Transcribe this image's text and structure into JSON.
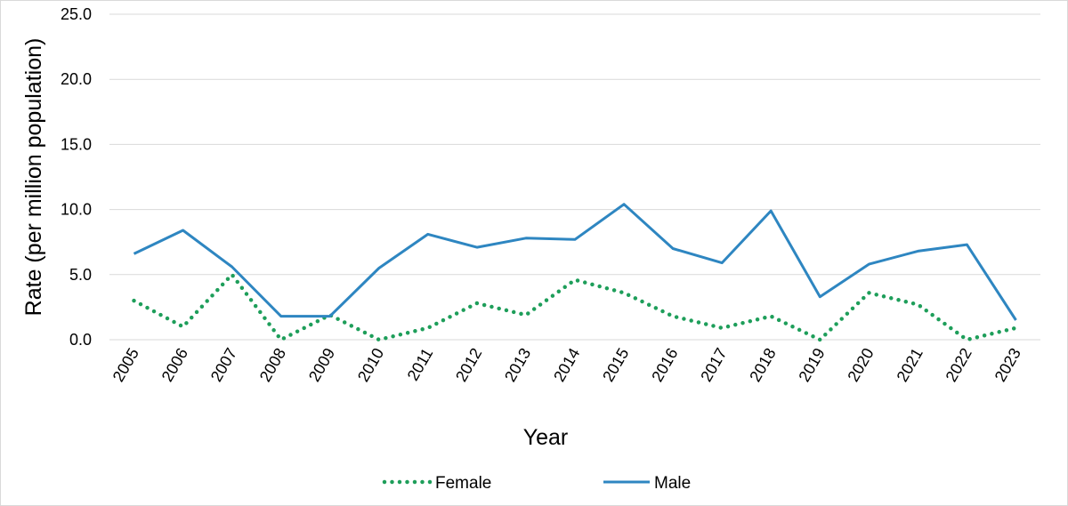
{
  "chart_data": {
    "type": "line",
    "title": "",
    "xlabel": "Year",
    "ylabel": "Rate (per million population)",
    "ylim": [
      0,
      25
    ],
    "yticks": [
      "0.0",
      "5.0",
      "10.0",
      "15.0",
      "20.0",
      "25.0"
    ],
    "grid": true,
    "legend_position": "bottom",
    "categories": [
      "2005",
      "2006",
      "2007",
      "2008",
      "2009",
      "2010",
      "2011",
      "2012",
      "2013",
      "2014",
      "2015",
      "2016",
      "2017",
      "2018",
      "2019",
      "2020",
      "2021",
      "2022",
      "2023"
    ],
    "series": [
      {
        "name": "Female",
        "style": "dotted",
        "color": "#1e9e5a",
        "values": [
          3.0,
          1.0,
          5.0,
          0.0,
          1.9,
          0.0,
          0.9,
          2.8,
          1.9,
          4.6,
          3.6,
          1.8,
          0.9,
          1.8,
          0.0,
          3.6,
          2.7,
          0.0,
          0.9
        ]
      },
      {
        "name": "Male",
        "style": "solid",
        "color": "#2e86c1",
        "values": [
          6.6,
          8.4,
          5.6,
          1.8,
          1.8,
          5.5,
          8.1,
          7.1,
          7.8,
          7.7,
          10.4,
          7.0,
          5.9,
          9.9,
          3.3,
          5.8,
          6.8,
          7.3,
          1.5
        ]
      }
    ]
  }
}
